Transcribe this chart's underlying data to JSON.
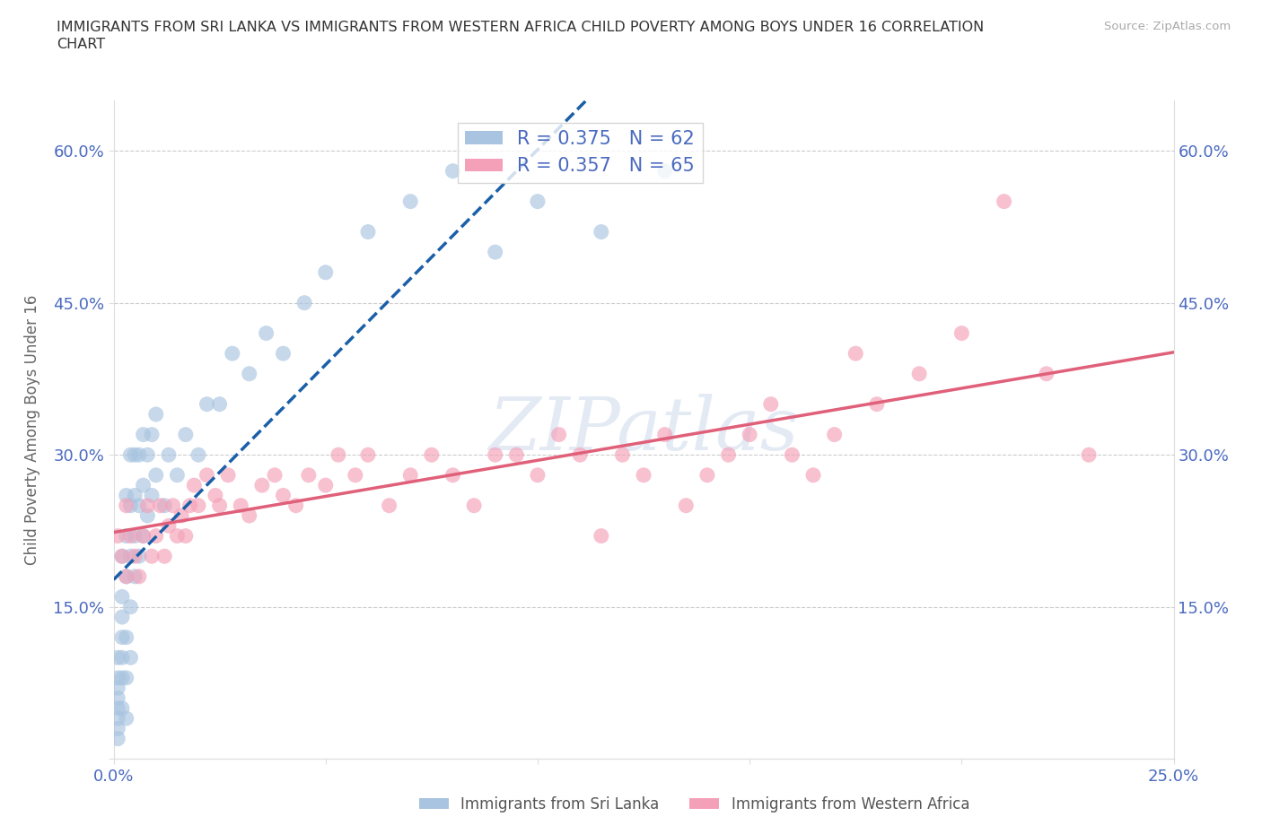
{
  "title_line1": "IMMIGRANTS FROM SRI LANKA VS IMMIGRANTS FROM WESTERN AFRICA CHILD POVERTY AMONG BOYS UNDER 16 CORRELATION",
  "title_line2": "CHART",
  "source_text": "Source: ZipAtlas.com",
  "ylabel": "Child Poverty Among Boys Under 16",
  "xlim": [
    0.0,
    0.25
  ],
  "ylim": [
    0.0,
    0.65
  ],
  "x_tick_positions": [
    0.0,
    0.05,
    0.1,
    0.15,
    0.2,
    0.25
  ],
  "x_tick_labels": [
    "0.0%",
    "",
    "",
    "",
    "",
    "25.0%"
  ],
  "y_tick_positions": [
    0.0,
    0.15,
    0.3,
    0.45,
    0.6
  ],
  "y_tick_labels": [
    "",
    "15.0%",
    "30.0%",
    "45.0%",
    "60.0%"
  ],
  "sri_lanka_color": "#a8c4e0",
  "western_africa_color": "#f4a0b8",
  "sri_lanka_line_color": "#1a5fa8",
  "western_africa_line_color": "#e0607a",
  "sri_lanka_R": 0.375,
  "sri_lanka_N": 62,
  "western_africa_R": 0.357,
  "western_africa_N": 65,
  "watermark": "ZIPatlas",
  "background_color": "#ffffff",
  "grid_color": "#cccccc",
  "legend_label_1": "Immigrants from Sri Lanka",
  "legend_label_2": "Immigrants from Western Africa",
  "tick_color": "#4a6abf",
  "title_color": "#333333",
  "sri_lanka_x": [
    0.001,
    0.001,
    0.001,
    0.001,
    0.001,
    0.001,
    0.001,
    0.001,
    0.002,
    0.002,
    0.002,
    0.002,
    0.002,
    0.002,
    0.002,
    0.003,
    0.003,
    0.003,
    0.003,
    0.003,
    0.003,
    0.004,
    0.004,
    0.004,
    0.004,
    0.004,
    0.005,
    0.005,
    0.005,
    0.005,
    0.006,
    0.006,
    0.006,
    0.007,
    0.007,
    0.007,
    0.008,
    0.008,
    0.009,
    0.009,
    0.01,
    0.01,
    0.012,
    0.013,
    0.015,
    0.017,
    0.02,
    0.022,
    0.025,
    0.028,
    0.032,
    0.036,
    0.04,
    0.045,
    0.05,
    0.06,
    0.07,
    0.08,
    0.09,
    0.1,
    0.115,
    0.13
  ],
  "sri_lanka_y": [
    0.02,
    0.03,
    0.04,
    0.05,
    0.06,
    0.07,
    0.08,
    0.1,
    0.05,
    0.08,
    0.1,
    0.12,
    0.14,
    0.16,
    0.2,
    0.04,
    0.08,
    0.12,
    0.18,
    0.22,
    0.26,
    0.1,
    0.15,
    0.2,
    0.25,
    0.3,
    0.18,
    0.22,
    0.26,
    0.3,
    0.2,
    0.25,
    0.3,
    0.22,
    0.27,
    0.32,
    0.24,
    0.3,
    0.26,
    0.32,
    0.28,
    0.34,
    0.25,
    0.3,
    0.28,
    0.32,
    0.3,
    0.35,
    0.35,
    0.4,
    0.38,
    0.42,
    0.4,
    0.45,
    0.48,
    0.52,
    0.55,
    0.58,
    0.5,
    0.55,
    0.52,
    0.58
  ],
  "western_africa_x": [
    0.001,
    0.002,
    0.003,
    0.003,
    0.004,
    0.005,
    0.006,
    0.007,
    0.008,
    0.009,
    0.01,
    0.011,
    0.012,
    0.013,
    0.014,
    0.015,
    0.016,
    0.017,
    0.018,
    0.019,
    0.02,
    0.022,
    0.024,
    0.025,
    0.027,
    0.03,
    0.032,
    0.035,
    0.038,
    0.04,
    0.043,
    0.046,
    0.05,
    0.053,
    0.057,
    0.06,
    0.065,
    0.07,
    0.075,
    0.08,
    0.085,
    0.09,
    0.095,
    0.1,
    0.105,
    0.11,
    0.115,
    0.12,
    0.125,
    0.13,
    0.135,
    0.14,
    0.145,
    0.15,
    0.155,
    0.16,
    0.165,
    0.17,
    0.175,
    0.18,
    0.19,
    0.2,
    0.21,
    0.22,
    0.23
  ],
  "western_africa_y": [
    0.22,
    0.2,
    0.25,
    0.18,
    0.22,
    0.2,
    0.18,
    0.22,
    0.25,
    0.2,
    0.22,
    0.25,
    0.2,
    0.23,
    0.25,
    0.22,
    0.24,
    0.22,
    0.25,
    0.27,
    0.25,
    0.28,
    0.26,
    0.25,
    0.28,
    0.25,
    0.24,
    0.27,
    0.28,
    0.26,
    0.25,
    0.28,
    0.27,
    0.3,
    0.28,
    0.3,
    0.25,
    0.28,
    0.3,
    0.28,
    0.25,
    0.3,
    0.3,
    0.28,
    0.32,
    0.3,
    0.22,
    0.3,
    0.28,
    0.32,
    0.25,
    0.28,
    0.3,
    0.32,
    0.35,
    0.3,
    0.28,
    0.32,
    0.4,
    0.35,
    0.38,
    0.42,
    0.55,
    0.38,
    0.3
  ]
}
